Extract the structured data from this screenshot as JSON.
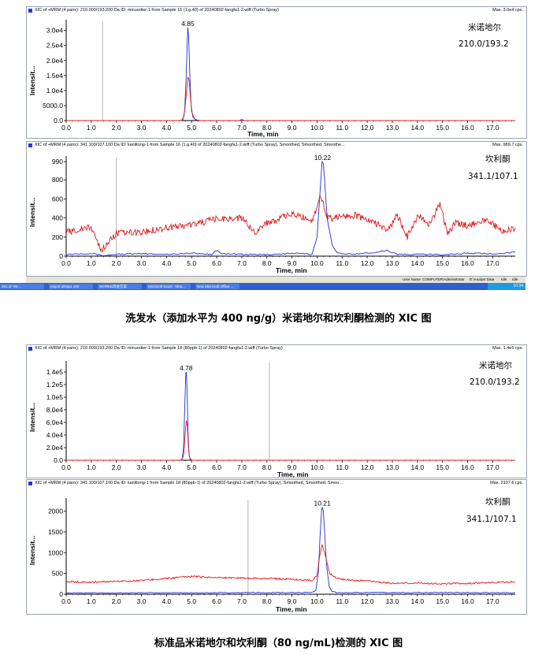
{
  "panels": [
    {
      "id": "p1",
      "title": "XIC of +MRM (4 pairs): 210.000/193.200 Da ID: minuodier-1 from Sample 16 (1.g.40) of 20240802-fangfa1-2.wiff (Turbo Spray)",
      "max_label": "Max. 3.0e4 cps.",
      "compound": "米诺地尔",
      "transition": "210.0/193.2",
      "ylabel": "Intensit...",
      "xlabel": "Time, min"
    },
    {
      "id": "p2",
      "title": "XIC of +MRM (4 pairs): 341.100/107.100 Da ID: kanlitong-1 from Sample 16 (1.g.40) of 20240802-fangfa1-2.wiff (Turbo Spray), Smoothed, Smoothed, Smoothe...",
      "max_label": "Max. 989.7 cps.",
      "compound": "坎利酮",
      "transition": "341.1/107.1",
      "ylabel": "Intensit...",
      "xlabel": "Time, min"
    },
    {
      "id": "p3",
      "title": "XIC of +MRM (4 pairs): 210.000/193.200 Da ID: minuodier-1 from Sample 18 (80ppb-1) of 20240802-fangfa1-2.wiff (Turbo Spray)",
      "max_label": "Max. 1.4e5 cps.",
      "compound": "米诺地尔",
      "transition": "210.0/193.2",
      "ylabel": "Intensit...",
      "xlabel": "Time, min"
    },
    {
      "id": "p4",
      "title": "XIC of +MRM (4 pairs): 341.100/107.100 Da ID: kanlitong-1 from Sample 18 (80ppb-1) of 20240802-fangfa1-2.wiff (Turbo Spray), Smoothed, Smoothed, Smoo...",
      "max_label": "Max. 2107.6 cps.",
      "compound": "坎利酮",
      "transition": "341.1/107.1",
      "ylabel": "Intensit...",
      "xlabel": "Time, min"
    }
  ],
  "captions": {
    "top": "洗发水（添加水平为 400 ng/g）米诺地尔和坎利酮检测的 XIC 图",
    "bottom": "标准品米诺地尔和坎利酮（80 ng/mL)检测的 XIC 图"
  },
  "statusbar": {
    "user": "User Name: COMPUTER\\Administrator",
    "path": "D:\\Analyst Data",
    "state1": "Idle",
    "state2": "Idle"
  },
  "taskbar": {
    "items": [
      "XIC of +M...",
      "export ultrap1 100",
      "WORKE改进方案",
      "Microsoft Excel - Mea...",
      "New Microsoft Office ..."
    ],
    "clock": "10:34"
  },
  "colors": {
    "blue": "#1f2fd6",
    "red": "#e01a1a",
    "axis": "#000000",
    "grid": "#c8c8c8"
  },
  "chart_data": [
    {
      "type": "line",
      "panel": "p1",
      "xlim": [
        0,
        17.9
      ],
      "ylim": [
        0,
        32000
      ],
      "x_ticks": [
        0,
        1,
        2,
        3,
        4,
        5,
        6,
        7,
        8,
        9,
        10,
        11,
        12,
        13,
        14,
        15,
        16,
        17
      ],
      "x_tick_labels": [
        "0.0",
        "1.0",
        "2.0",
        "3.0",
        "4.0",
        "5.0",
        "6.0",
        "7.0",
        "8.0",
        "9.0",
        "10.0",
        "11.0",
        "12.0",
        "13.0",
        "14.0",
        "15.0",
        "16.0",
        "17.0"
      ],
      "y_ticks": [
        0,
        5000,
        10000,
        15000,
        20000,
        25000,
        30000
      ],
      "y_tick_labels": [
        "0.0",
        "5000.0",
        "1.0e4",
        "1.5e4",
        "2.0e4",
        "2.5e4",
        "3.0e4"
      ],
      "vline": 1.45,
      "peak_label": "4.85",
      "peak_label_x": 4.85,
      "series": [
        {
          "color": "blue",
          "x": [
            0,
            4.55,
            4.65,
            4.72,
            4.78,
            4.83,
            4.85,
            4.88,
            4.93,
            4.98,
            5.05,
            5.15,
            5.3,
            6.9,
            7.0,
            7.1,
            17.9
          ],
          "y": [
            0,
            0,
            300,
            3000,
            14000,
            27000,
            31000,
            28000,
            15000,
            5000,
            1200,
            300,
            0,
            0,
            400,
            0,
            0
          ]
        },
        {
          "color": "red",
          "x": [
            0,
            4.6,
            4.7,
            4.78,
            4.85,
            4.9,
            4.95,
            5.0,
            5.1,
            5.2,
            5.35,
            17.9
          ],
          "y": [
            0,
            0,
            1500,
            8000,
            14500,
            13500,
            8000,
            3000,
            800,
            200,
            0,
            0
          ]
        }
      ]
    },
    {
      "type": "line",
      "panel": "p2",
      "xlim": [
        0,
        17.9
      ],
      "ylim": [
        0,
        1000
      ],
      "x_ticks": [
        0,
        1,
        2,
        3,
        4,
        5,
        6,
        7,
        8,
        9,
        10,
        11,
        12,
        13,
        14,
        15,
        16,
        17
      ],
      "x_tick_labels": [
        "0.0",
        "1.0",
        "2.0",
        "3.0",
        "4.0",
        "5.0",
        "6.0",
        "7.0",
        "8.0",
        "9.0",
        "10.0",
        "11.0",
        "12.0",
        "13.0",
        "14.0",
        "15.0",
        "16.0",
        "17.0"
      ],
      "y_ticks": [
        0,
        200,
        400,
        600,
        800,
        990
      ],
      "y_tick_labels": [
        "0",
        "200",
        "400",
        "600",
        "800",
        "990"
      ],
      "vline": 2.0,
      "peak_label": "10.22",
      "peak_label_x": 10.22,
      "series": [
        {
          "color": "blue",
          "x": [
            0,
            1.0,
            1.5,
            2.0,
            3.0,
            4.0,
            5.0,
            5.8,
            6.0,
            6.2,
            7.0,
            8.0,
            9.0,
            9.8,
            10.0,
            10.1,
            10.2,
            10.25,
            10.3,
            10.4,
            10.6,
            10.8,
            11.0,
            12.0,
            12.8,
            13.2,
            13.6,
            14.0,
            15.0,
            16.0,
            17.0,
            17.9
          ],
          "y": [
            20,
            30,
            5,
            20,
            25,
            20,
            30,
            20,
            60,
            25,
            20,
            15,
            30,
            20,
            200,
            600,
            990,
            970,
            800,
            400,
            120,
            40,
            20,
            30,
            60,
            20,
            15,
            20,
            15,
            30,
            25,
            40
          ]
        },
        {
          "color": "red",
          "x": [
            0,
            0.5,
            1.0,
            1.4,
            2.0,
            3.0,
            4.0,
            5.0,
            6.0,
            7.0,
            7.5,
            8.0,
            9.0,
            9.8,
            10.0,
            10.1,
            10.25,
            10.4,
            10.6,
            11.0,
            11.5,
            12.0,
            12.5,
            12.8,
            13.2,
            13.6,
            14.0,
            14.5,
            14.9,
            15.2,
            15.5,
            16.0,
            16.6,
            17.0,
            17.4,
            17.9
          ],
          "y": [
            250,
            280,
            300,
            60,
            240,
            250,
            300,
            330,
            390,
            400,
            250,
            350,
            440,
            380,
            500,
            650,
            550,
            420,
            400,
            420,
            430,
            380,
            330,
            260,
            430,
            200,
            420,
            330,
            560,
            220,
            350,
            320,
            380,
            340,
            250,
            300
          ]
        }
      ]
    },
    {
      "type": "line",
      "panel": "p3",
      "xlim": [
        0,
        17.9
      ],
      "ylim": [
        0,
        150000
      ],
      "x_ticks": [
        0,
        1,
        2,
        3,
        4,
        5,
        6,
        7,
        8,
        9,
        10,
        11,
        12,
        13,
        14,
        15,
        16,
        17
      ],
      "x_tick_labels": [
        "0.0",
        "1.0",
        "2.0",
        "3.0",
        "4.0",
        "5.0",
        "6.0",
        "7.0",
        "8.0",
        "9.0",
        "10.0",
        "11.0",
        "12.0",
        "13.0",
        "14.0",
        "15.0",
        "16.0",
        "17.0"
      ],
      "y_ticks": [
        0,
        20000,
        40000,
        60000,
        80000,
        100000,
        120000,
        140000
      ],
      "y_tick_labels": [
        "0.0",
        "2.0e4",
        "4.0e4",
        "6.0e4",
        "8.0e4",
        "1.0e5",
        "1.2e5",
        "1.4e5"
      ],
      "vline": 8.1,
      "peak_label": "4.78",
      "peak_label_x": 4.78,
      "series": [
        {
          "color": "blue",
          "x": [
            0,
            4.55,
            4.62,
            4.68,
            4.73,
            4.77,
            4.79,
            4.82,
            4.86,
            4.9,
            4.95,
            5.05,
            17.9
          ],
          "y": [
            0,
            0,
            2000,
            20000,
            90000,
            138000,
            140000,
            110000,
            40000,
            8000,
            1000,
            0,
            0
          ]
        },
        {
          "color": "red",
          "x": [
            0,
            4.6,
            4.68,
            4.74,
            4.79,
            4.83,
            4.87,
            4.92,
            5.0,
            17.9
          ],
          "y": [
            0,
            0,
            8000,
            40000,
            63000,
            55000,
            22000,
            4000,
            0,
            0
          ]
        }
      ]
    },
    {
      "type": "line",
      "panel": "p4",
      "xlim": [
        0,
        17.9
      ],
      "ylim": [
        0,
        2200
      ],
      "x_ticks": [
        0,
        1,
        2,
        3,
        4,
        5,
        6,
        7,
        8,
        9,
        10,
        11,
        12,
        13,
        14,
        15,
        16,
        17
      ],
      "x_tick_labels": [
        "0.0",
        "1.0",
        "2.0",
        "3.0",
        "4.0",
        "5.0",
        "6.0",
        "7.0",
        "8.0",
        "9.0",
        "10.0",
        "11.0",
        "12.0",
        "13.0",
        "14.0",
        "15.0",
        "16.0",
        "17.0"
      ],
      "y_ticks": [
        0,
        500,
        1000,
        1500,
        2000
      ],
      "y_tick_labels": [
        "0",
        "500",
        "1000",
        "1500",
        "2000"
      ],
      "vline": 7.25,
      "peak_label": "10.21",
      "peak_label_x": 10.21,
      "series": [
        {
          "color": "blue",
          "x": [
            0,
            9.8,
            9.95,
            10.05,
            10.12,
            10.18,
            10.21,
            10.25,
            10.3,
            10.38,
            10.48,
            10.6,
            10.8,
            17.9
          ],
          "y": [
            30,
            40,
            100,
            500,
            1400,
            2000,
            2100,
            2000,
            1500,
            700,
            200,
            60,
            40,
            40
          ]
        },
        {
          "color": "red",
          "x": [
            0,
            1.0,
            2.0,
            3.0,
            4.0,
            5.0,
            6.0,
            7.0,
            8.0,
            9.0,
            9.8,
            10.0,
            10.1,
            10.2,
            10.3,
            10.5,
            10.8,
            11.5,
            12.0,
            13.0,
            14.0,
            15.0,
            16.0,
            17.0,
            17.9
          ],
          "y": [
            300,
            290,
            310,
            330,
            380,
            430,
            400,
            390,
            380,
            360,
            330,
            450,
            900,
            1200,
            1000,
            500,
            380,
            330,
            320,
            260,
            270,
            250,
            260,
            280,
            300
          ]
        }
      ]
    }
  ]
}
